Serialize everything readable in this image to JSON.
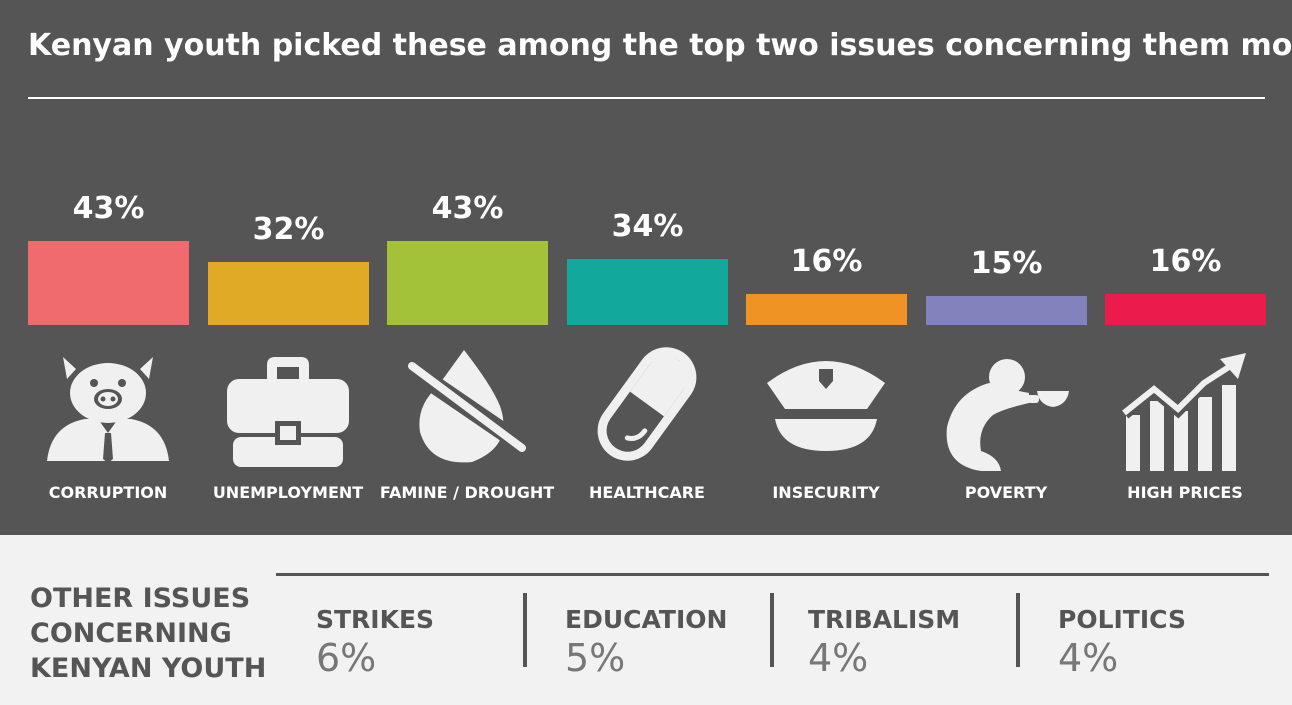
{
  "title": "Kenyan youth picked these among the top two issues concerning them most",
  "chart_data": {
    "type": "bar",
    "title": "Kenyan youth picked these among the top two issues concerning them most",
    "categories": [
      "CORRUPTION",
      "UNEMPLOYMENT",
      "FAMINE / DROUGHT",
      "HEALTHCARE",
      "INSECURITY",
      "POVERTY",
      "HIGH PRICES"
    ],
    "values": [
      43,
      32,
      43,
      34,
      16,
      15,
      16
    ],
    "value_labels": [
      "43%",
      "32%",
      "43%",
      "34%",
      "16%",
      "15%",
      "16%"
    ],
    "colors": [
      "#f06b6e",
      "#e0a926",
      "#a3c23a",
      "#13a89c",
      "#ef9325",
      "#8282bd",
      "#eb1c4b"
    ],
    "icons": [
      "pig-businessman-icon",
      "briefcase-icon",
      "no-water-drop-icon",
      "pill-capsule-icon",
      "police-cap-icon",
      "beggar-bowl-icon",
      "rising-prices-icon"
    ],
    "ylim": [
      0,
      43
    ],
    "grid": false,
    "legend": "none"
  },
  "other": {
    "heading_lines": [
      "OTHER ISSUES",
      "CONCERNING",
      "KENYAN YOUTH"
    ],
    "items": [
      {
        "name": "STRIKES",
        "value": "6%"
      },
      {
        "name": "EDUCATION",
        "value": "5%"
      },
      {
        "name": "TRIBALISM",
        "value": "4%"
      },
      {
        "name": "POLITICS",
        "value": "4%"
      }
    ]
  }
}
